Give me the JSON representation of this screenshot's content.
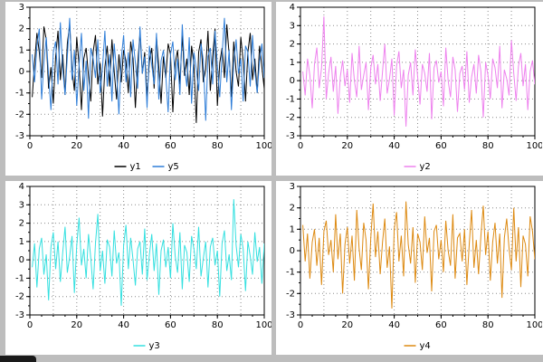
{
  "style": {
    "background": "#bdbdbd",
    "panel_bg": "#ffffff",
    "grid_color": "#8c8c8c",
    "axis_color": "#000000",
    "text_color": "#000000"
  },
  "chart_data": [
    {
      "type": "line",
      "title": "",
      "xlabel": "",
      "ylabel": "",
      "xlim": [
        0,
        100
      ],
      "ylim": [
        -3,
        3
      ],
      "x_ticks": [
        0,
        20,
        40,
        60,
        80,
        100
      ],
      "y_ticks": [
        -3,
        -2,
        -1,
        0,
        1,
        2,
        3
      ],
      "grid": {
        "on": true,
        "x_every": 10,
        "y_every": 1
      },
      "legend_position": "bottom",
      "x": {
        "start": 1,
        "step": 1
      },
      "series": [
        {
          "name": "y1",
          "color": "#000000",
          "values": [
            -1.2,
            0.4,
            1.8,
            0.9,
            -0.3,
            2.1,
            1.5,
            -0.8,
            0.2,
            -1.5,
            0.7,
            1.9,
            -0.4,
            0.8,
            -1.1,
            1.3,
            2.2,
            0.1,
            -0.9,
            1.6,
            0.3,
            -1.8,
            0.6,
            1.1,
            -0.2,
            -1.4,
            0.9,
            1.7,
            -0.6,
            0.4,
            -2.1,
            0.2,
            1.2,
            -0.7,
            1.5,
            0.0,
            -1.3,
            0.8,
            -0.5,
            1.0,
            0.5,
            -1.0,
            1.4,
            0.6,
            -1.7,
            0.3,
            1.8,
            -0.1,
            0.9,
            -1.2,
            0.5,
            1.1,
            -0.8,
            1.6,
            0.2,
            -1.5,
            0.7,
            -0.3,
            1.3,
            0.8,
            -1.9,
            0.4,
            1.0,
            -0.6,
            1.7,
            -0.2,
            0.6,
            -1.1,
            1.2,
            0.3,
            -2.4,
            0.9,
            1.5,
            -0.5,
            0.1,
            1.9,
            -0.9,
            0.7,
            2.0,
            -1.6,
            0.4,
            1.1,
            -0.3,
            2.2,
            0.8,
            -1.2,
            1.4,
            0.0,
            -0.7,
            1.6,
            0.5,
            -1.4,
            0.9,
            1.8,
            -0.4,
            0.6,
            -1.0,
            1.2,
            0.2,
            -0.8
          ]
        },
        {
          "name": "y5",
          "color": "#2f7ed8",
          "values": [
            0.8,
            -0.5,
            1.2,
            2.0,
            -1.3,
            0.4,
            1.6,
            -0.2,
            -1.8,
            0.9,
            1.4,
            -0.6,
            2.3,
            0.1,
            -1.1,
            0.7,
            2.5,
            -0.4,
            1.0,
            -1.6,
            0.3,
            1.8,
            -0.9,
            0.5,
            -2.2,
            1.1,
            0.6,
            -0.3,
            1.5,
            -1.0,
            0.2,
            1.9,
            -0.7,
            0.8,
            -1.4,
            1.3,
            0.0,
            -2.0,
            0.6,
            1.7,
            -0.5,
            0.9,
            -1.2,
            1.5,
            0.4,
            -0.8,
            2.1,
            -0.1,
            0.7,
            -1.7,
            1.2,
            0.3,
            -0.6,
            1.8,
            -1.3,
            0.5,
            1.0,
            -0.2,
            -1.9,
            0.8,
            1.4,
            -0.4,
            0.6,
            -1.1,
            2.2,
            0.2,
            -0.7,
            1.6,
            -1.5,
            0.9,
            0.1,
            -0.9,
            1.3,
            0.5,
            -2.3,
            0.7,
            1.1,
            -0.6,
            1.9,
            0.3,
            -1.2,
            0.8,
            2.5,
            -0.5,
            1.0,
            -1.8,
            0.4,
            1.5,
            -0.1,
            0.6,
            -1.4,
            1.2,
            0.9,
            -0.7,
            1.7,
            0.0,
            -1.0,
            0.5,
            1.3,
            -0.3
          ]
        }
      ]
    },
    {
      "type": "line",
      "title": "",
      "xlabel": "",
      "ylabel": "",
      "xlim": [
        0,
        100
      ],
      "ylim": [
        -3,
        4
      ],
      "x_ticks": [
        0,
        20,
        40,
        60,
        80,
        100
      ],
      "y_ticks": [
        -3,
        -2,
        -1,
        0,
        1,
        2,
        3,
        4
      ],
      "grid": {
        "on": true,
        "x_every": 10,
        "y_every": 1
      },
      "legend_position": "bottom",
      "x": {
        "start": 1,
        "step": 1
      },
      "series": [
        {
          "name": "y2",
          "color": "#ee82ee",
          "values": [
            0.5,
            -0.8,
            1.2,
            0.3,
            -1.5,
            0.9,
            1.8,
            -0.4,
            0.7,
            3.5,
            -1.0,
            0.4,
            1.3,
            -0.6,
            0.8,
            -1.8,
            0.2,
            1.1,
            -0.3,
            0.6,
            -1.2,
            1.5,
            0.0,
            -0.9,
            1.9,
            -0.5,
            0.3,
            1.0,
            -1.6,
            0.7,
            1.4,
            -0.2,
            0.9,
            -1.1,
            0.5,
            2.0,
            -0.7,
            0.1,
            1.2,
            -1.9,
            0.8,
            1.6,
            -0.4,
            0.6,
            -2.5,
            0.3,
            1.0,
            -0.8,
            1.7,
            0.2,
            -1.3,
            0.9,
            0.4,
            -0.6,
            1.5,
            -2.1,
            0.7,
            1.1,
            -0.1,
            0.5,
            -1.4,
            1.8,
            0.0,
            -0.9,
            1.3,
            0.6,
            -1.7,
            0.4,
            0.8,
            -0.5,
            1.6,
            -1.2,
            0.2,
            0.9,
            -0.7,
            1.4,
            0.5,
            -2.0,
            1.0,
            0.3,
            -1.0,
            1.2,
            0.7,
            -0.4,
            1.9,
            -1.5,
            0.6,
            0.1,
            -0.8,
            2.2,
            0.4,
            -1.1,
            0.8,
            1.5,
            -0.3,
            0.9,
            -1.6,
            0.5,
            1.1,
            -0.2
          ]
        }
      ]
    },
    {
      "type": "line",
      "title": "",
      "xlabel": "",
      "ylabel": "",
      "xlim": [
        0,
        100
      ],
      "ylim": [
        -3,
        4
      ],
      "x_ticks": [
        0,
        20,
        40,
        60,
        80,
        100
      ],
      "y_ticks": [
        -3,
        -2,
        -1,
        0,
        1,
        2,
        3,
        4
      ],
      "grid": {
        "on": true,
        "x_every": 10,
        "y_every": 1
      },
      "legend_position": "bottom",
      "x": {
        "start": 1,
        "step": 1
      },
      "series": [
        {
          "name": "y3",
          "color": "#35e0e0",
          "values": [
            -0.4,
            0.9,
            -1.5,
            0.6,
            1.2,
            -0.8,
            0.3,
            -2.2,
            0.7,
            1.5,
            -0.5,
            1.0,
            -1.2,
            0.4,
            1.8,
            -0.7,
            0.2,
            1.3,
            -1.8,
            0.8,
            2.3,
            -0.3,
            0.6,
            -1.0,
            1.4,
            0.1,
            -1.6,
            0.9,
            2.5,
            -0.6,
            0.5,
            -1.3,
            1.1,
            0.7,
            -0.9,
            1.6,
            -0.2,
            0.4,
            -2.5,
            0.8,
            1.9,
            -0.5,
            1.2,
            0.0,
            -1.4,
            0.6,
            1.0,
            -0.8,
            1.7,
            -1.1,
            0.3,
            1.4,
            -0.6,
            0.9,
            -1.9,
            0.5,
            1.1,
            -0.4,
            0.7,
            -1.0,
            2.0,
            0.2,
            -0.7,
            1.5,
            -1.6,
            0.8,
            0.4,
            -1.2,
            1.3,
            0.6,
            -0.5,
            1.8,
            -0.9,
            0.1,
            1.0,
            -1.5,
            0.7,
            1.2,
            -0.3,
            0.5,
            -2.0,
            0.9,
            1.6,
            -0.6,
            0.3,
            -1.1,
            3.3,
            0.8,
            -0.4,
            1.4,
            0.6,
            -1.7,
            1.0,
            0.2,
            -0.8,
            1.5,
            -0.1,
            0.7,
            -1.3,
            0.9
          ]
        }
      ]
    },
    {
      "type": "line",
      "title": "",
      "xlabel": "",
      "ylabel": "",
      "xlim": [
        0,
        100
      ],
      "ylim": [
        -3,
        3
      ],
      "x_ticks": [
        0,
        20,
        40,
        60,
        80,
        100
      ],
      "y_ticks": [
        -3,
        -2,
        -1,
        0,
        1,
        2,
        3
      ],
      "grid": {
        "on": true,
        "x_every": 10,
        "y_every": 1
      },
      "legend_position": "bottom",
      "x": {
        "start": 1,
        "step": 1
      },
      "series": [
        {
          "name": "y4",
          "color": "#dd8a12",
          "values": [
            1.2,
            -0.5,
            0.8,
            -1.3,
            0.4,
            1.0,
            -0.7,
            0.6,
            -1.6,
            0.9,
            1.4,
            -0.2,
            0.5,
            -1.0,
            1.7,
            -0.4,
            0.8,
            -2.0,
            0.3,
            1.1,
            -0.6,
            0.7,
            -1.4,
            1.9,
            0.1,
            -0.9,
            1.3,
            0.5,
            -1.8,
            0.6,
            2.2,
            -0.3,
            0.9,
            -1.1,
            0.4,
            1.5,
            -0.8,
            0.2,
            -2.7,
            1.0,
            1.8,
            -0.5,
            0.7,
            -1.2,
            2.3,
            0.3,
            -0.6,
            1.1,
            -1.5,
            0.8,
            0.4,
            -0.9,
            1.6,
            -0.1,
            0.6,
            -1.9,
            0.9,
            1.2,
            -0.4,
            0.5,
            -1.0,
            1.4,
            0.0,
            -0.7,
            1.7,
            -1.3,
            0.6,
            0.8,
            -0.5,
            1.0,
            -1.6,
            0.3,
            1.9,
            -0.8,
            0.5,
            -1.1,
            0.7,
            2.1,
            -0.2,
            0.9,
            -1.4,
            0.4,
            1.3,
            -0.6,
            0.8,
            -2.2,
            0.6,
            1.5,
            0.1,
            -0.9,
            2.0,
            -0.5,
            1.1,
            -1.7,
            0.7,
            0.3,
            -1.2,
            1.6,
            0.9,
            -0.4
          ]
        }
      ]
    }
  ]
}
